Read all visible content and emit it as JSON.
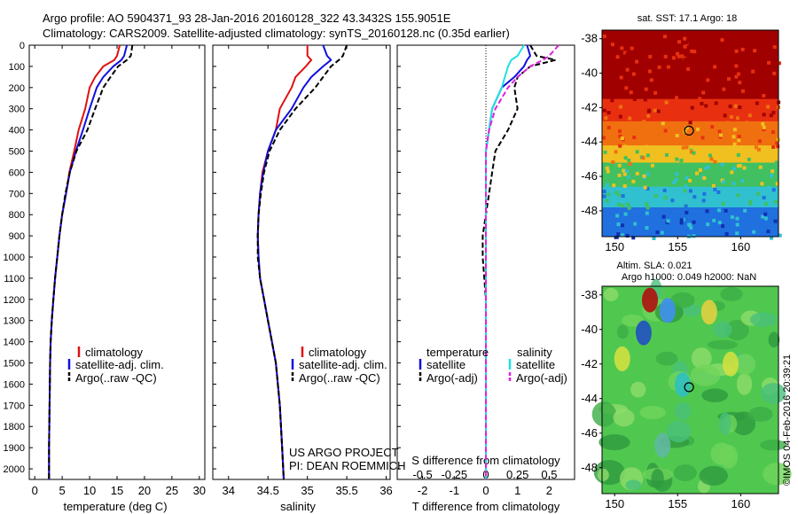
{
  "header": {
    "line1": "Argo profile: AO 5904371_93 28-Jan-2016 20160128_322 43.3432S 155.9051E",
    "line2": "Climatology: CARS2009. Satellite-adjusted climatology: synTS_20160128.nc (0.35d earlier)"
  },
  "colors": {
    "climatology": "#e01010",
    "satellite": "#1010e0",
    "argo": "#000000",
    "sal_satellite": "#20e0e0",
    "sal_argo": "#e020e0"
  },
  "depth_axis": {
    "ticks": [
      "0",
      "100",
      "200",
      "300",
      "400",
      "500",
      "600",
      "700",
      "800",
      "900",
      "1000",
      "1100",
      "1200",
      "1300",
      "1400",
      "1500",
      "1600",
      "1700",
      "1800",
      "1900",
      "2000"
    ]
  },
  "panel1": {
    "xlabel": "temperature (deg C)",
    "xticks": [
      "0",
      "5",
      "10",
      "15",
      "20",
      "25",
      "30"
    ],
    "legend": [
      "climatology",
      "satellite-adj. clim.",
      "Argo(..raw -QC)"
    ]
  },
  "panel2": {
    "xlabel": "salinity",
    "xticks": [
      "34",
      "34.5",
      "35",
      "35.5",
      "36"
    ],
    "legend": [
      "climatology",
      "satellite-adj. clim.",
      "Argo(..raw -QC)"
    ],
    "credit1": "US ARGO PROJECT",
    "credit2": "PI: DEAN ROEMMICH"
  },
  "panel3": {
    "xlabel": "T difference from climatology",
    "xticks": [
      "-2",
      "-1",
      "0",
      "1",
      "2"
    ],
    "top_label": "S difference from climatology",
    "top_ticks": [
      "-0.5",
      "-0.25",
      "0",
      "0.25",
      "0.5"
    ],
    "legend_t_title": "temperature",
    "legend_s_title": "salinity",
    "legend_t": [
      "satellite",
      "Argo(-adj)"
    ],
    "legend_s": [
      "satellite",
      "Argo(-adj)"
    ]
  },
  "map_sst": {
    "title": "sat. SST: 17.1 Argo: 18",
    "yticks": [
      "-38",
      "-40",
      "-42",
      "-44",
      "-46",
      "-48"
    ],
    "xticks": [
      "150",
      "155",
      "160"
    ]
  },
  "map_sla": {
    "title1": "Altim. SLA: 0.021",
    "title2": "Argo h1000: 0.049 h2000: NaN",
    "yticks": [
      "-38",
      "-40",
      "-42",
      "-44",
      "-46",
      "-48"
    ],
    "xticks": [
      "150",
      "155",
      "160"
    ]
  },
  "stamp": "©IMOS 04-Feb-2016 20:39:21",
  "chart_data": [
    {
      "type": "line",
      "panel": "temperature",
      "xlabel": "temperature (deg C)",
      "ylabel": "",
      "xlim": [
        -1,
        31
      ],
      "ylim": [
        2050,
        0
      ],
      "series": [
        {
          "name": "climatology",
          "x": [
            15.5,
            15.0,
            14.5,
            12.5,
            11.0,
            10.0,
            9.2,
            8.0,
            7.2,
            6.3,
            5.7,
            5.0,
            4.5,
            4.1,
            3.7,
            3.4,
            3.1,
            2.9,
            2.8,
            2.7,
            2.6,
            2.6
          ],
          "y": [
            0,
            50,
            70,
            100,
            150,
            200,
            300,
            400,
            500,
            600,
            700,
            800,
            900,
            1000,
            1100,
            1200,
            1300,
            1400,
            1500,
            1700,
            1900,
            2050
          ]
        },
        {
          "name": "satellite-adj. clim.",
          "x": [
            16.8,
            16.3,
            15.8,
            14.3,
            12.5,
            11.3,
            10.0,
            8.8,
            7.5,
            6.4,
            5.7,
            5.0,
            4.5,
            4.1,
            3.7,
            3.4,
            3.1,
            2.9,
            2.8,
            2.7,
            2.6,
            2.6
          ],
          "y": [
            0,
            50,
            70,
            100,
            150,
            200,
            300,
            400,
            500,
            600,
            700,
            800,
            900,
            1000,
            1100,
            1200,
            1300,
            1400,
            1500,
            1700,
            1900,
            2050
          ]
        },
        {
          "name": "Argo(..raw -QC)",
          "x": [
            17.8,
            17.5,
            16.8,
            15.2,
            13.8,
            12.5,
            11.0,
            9.6,
            7.6,
            6.4,
            5.6,
            5.0,
            4.5,
            4.1,
            3.7,
            3.4,
            3.1,
            2.9,
            2.8,
            2.7,
            2.6,
            2.6
          ],
          "y": [
            0,
            50,
            70,
            100,
            150,
            200,
            300,
            400,
            500,
            600,
            700,
            800,
            900,
            1000,
            1100,
            1200,
            1300,
            1400,
            1500,
            1700,
            1900,
            2050
          ]
        }
      ]
    },
    {
      "type": "line",
      "panel": "salinity",
      "xlabel": "salinity",
      "ylabel": "",
      "xlim": [
        33.8,
        36.05
      ],
      "ylim": [
        2050,
        0
      ],
      "series": [
        {
          "name": "climatology",
          "x": [
            35.0,
            35.0,
            35.05,
            34.98,
            34.85,
            34.8,
            34.65,
            34.6,
            34.5,
            34.43,
            34.4,
            34.38,
            34.37,
            34.38,
            34.4,
            34.45,
            34.5,
            34.55,
            34.6,
            34.65,
            34.68,
            34.7
          ],
          "y": [
            0,
            50,
            70,
            100,
            150,
            200,
            300,
            400,
            500,
            600,
            700,
            800,
            900,
            1000,
            1100,
            1200,
            1300,
            1400,
            1500,
            1700,
            1900,
            2050
          ]
        },
        {
          "name": "satellite-adj. clim.",
          "x": [
            35.2,
            35.25,
            35.3,
            35.2,
            35.05,
            34.95,
            34.8,
            34.6,
            34.5,
            34.44,
            34.4,
            34.38,
            34.37,
            34.38,
            34.4,
            34.45,
            34.5,
            34.55,
            34.6,
            34.65,
            34.68,
            34.7
          ],
          "y": [
            0,
            50,
            70,
            100,
            150,
            200,
            300,
            400,
            500,
            600,
            700,
            800,
            900,
            1000,
            1100,
            1200,
            1300,
            1400,
            1500,
            1700,
            1900,
            2050
          ]
        },
        {
          "name": "Argo(..raw -QC)",
          "x": [
            35.5,
            35.45,
            35.4,
            35.3,
            35.2,
            35.1,
            34.85,
            34.65,
            34.52,
            34.45,
            34.41,
            34.38,
            34.37,
            34.37,
            34.4,
            34.45,
            34.5,
            34.55,
            34.6,
            34.65,
            34.68,
            34.7
          ],
          "y": [
            0,
            50,
            70,
            100,
            150,
            200,
            300,
            400,
            500,
            600,
            700,
            800,
            900,
            1000,
            1100,
            1200,
            1300,
            1400,
            1500,
            1700,
            1900,
            2050
          ]
        }
      ]
    },
    {
      "type": "line",
      "panel": "differences",
      "xlabel": "T difference from climatology",
      "top_label": "S difference from climatology",
      "xlim": [
        -2.8,
        2.8
      ],
      "ylim": [
        2050,
        0
      ],
      "series": [
        {
          "name": "temperature satellite",
          "x": [
            1.3,
            1.4,
            1.3,
            1.2,
            0.9,
            0.5,
            0.2,
            0.1,
            0.0,
            0.0,
            0.0,
            0.0,
            0.0,
            0.0,
            0.0,
            0.0,
            0.0,
            0.0,
            0.0,
            0.0,
            0.0,
            0.0
          ],
          "y": [
            0,
            50,
            70,
            100,
            150,
            200,
            300,
            400,
            500,
            600,
            700,
            800,
            900,
            1000,
            1100,
            1200,
            1300,
            1400,
            1500,
            1700,
            1900,
            2050
          ]
        },
        {
          "name": "temperature Argo(-adj)",
          "x": [
            1.4,
            1.6,
            2.2,
            1.4,
            1.0,
            0.9,
            1.0,
            0.7,
            0.3,
            0.2,
            0.1,
            0.0,
            -0.1,
            -0.1,
            -0.05,
            0.0,
            0.0,
            0.0,
            0.0,
            0.0,
            0.0,
            0.0
          ],
          "y": [
            0,
            50,
            70,
            100,
            150,
            200,
            300,
            400,
            500,
            600,
            700,
            800,
            900,
            1000,
            1100,
            1200,
            1300,
            1400,
            1500,
            1700,
            1900,
            2050
          ]
        },
        {
          "name": "salinity satellite",
          "x": [
            1.2,
            1.0,
            0.8,
            0.7,
            0.6,
            0.5,
            0.2,
            0.1,
            0.0,
            0.0,
            0.0,
            0.0,
            0.0,
            0.0,
            0.0,
            0.0,
            0.0,
            0.0,
            0.0,
            0.0,
            0.0,
            0.0
          ],
          "y": [
            0,
            50,
            70,
            100,
            150,
            200,
            300,
            400,
            500,
            600,
            700,
            800,
            900,
            1000,
            1100,
            1200,
            1300,
            1400,
            1500,
            1700,
            1900,
            2050
          ]
        },
        {
          "name": "salinity Argo(-adj)",
          "x": [
            2.3,
            2.0,
            1.8,
            1.4,
            1.0,
            0.7,
            0.3,
            0.1,
            0.0,
            0.0,
            0.0,
            0.0,
            0.0,
            0.0,
            0.0,
            0.0,
            0.0,
            0.0,
            0.0,
            0.0,
            0.0,
            0.0
          ],
          "y": [
            0,
            50,
            70,
            100,
            150,
            200,
            300,
            400,
            500,
            600,
            700,
            800,
            900,
            1000,
            1100,
            1200,
            1300,
            1400,
            1500,
            1700,
            1900,
            2050
          ]
        }
      ]
    },
    {
      "type": "heatmap",
      "panel": "sat. SST map",
      "title": "sat. SST: 17.1 Argo: 18",
      "xlim": [
        149,
        163
      ],
      "ylim": [
        -49.5,
        -37.5
      ],
      "bands": [
        {
          "lat_to": -37.5,
          "color": "#a00000"
        },
        {
          "lat_to": -41.5,
          "color": "#e83010"
        },
        {
          "lat_to": -42.8,
          "color": "#f07010"
        },
        {
          "lat_to": -44.2,
          "color": "#f0c020"
        },
        {
          "lat_to": -45.2,
          "color": "#40c060"
        },
        {
          "lat_to": -46.6,
          "color": "#30c0d0"
        },
        {
          "lat_to": -47.8,
          "color": "#2070e0"
        },
        {
          "lat_to": -49.5,
          "color": "#1030b0"
        }
      ],
      "float_position": {
        "lon": 155.9,
        "lat": -43.34
      }
    },
    {
      "type": "heatmap",
      "panel": "altimetry SLA map",
      "title": "Altim. SLA: 0.021",
      "xlim": [
        149,
        163
      ],
      "ylim": [
        -49.5,
        -37.5
      ],
      "base_color": "#50c850",
      "features": [
        {
          "lon": 152.8,
          "lat": -38.3,
          "color": "#b01010"
        },
        {
          "lon": 154.2,
          "lat": -38.9,
          "color": "#4090f0"
        },
        {
          "lon": 152.3,
          "lat": -40.2,
          "color": "#2050c0"
        },
        {
          "lon": 157.5,
          "lat": -39.0,
          "color": "#e0d040"
        },
        {
          "lon": 155.4,
          "lat": -43.2,
          "color": "#30c0c0"
        },
        {
          "lon": 150.6,
          "lat": -41.7,
          "color": "#d0e040"
        },
        {
          "lon": 159.2,
          "lat": -42.0,
          "color": "#d0e040"
        },
        {
          "lon": 153.8,
          "lat": -46.7,
          "color": "#60b8a0"
        }
      ],
      "float_position": {
        "lon": 155.9,
        "lat": -43.34
      }
    }
  ]
}
